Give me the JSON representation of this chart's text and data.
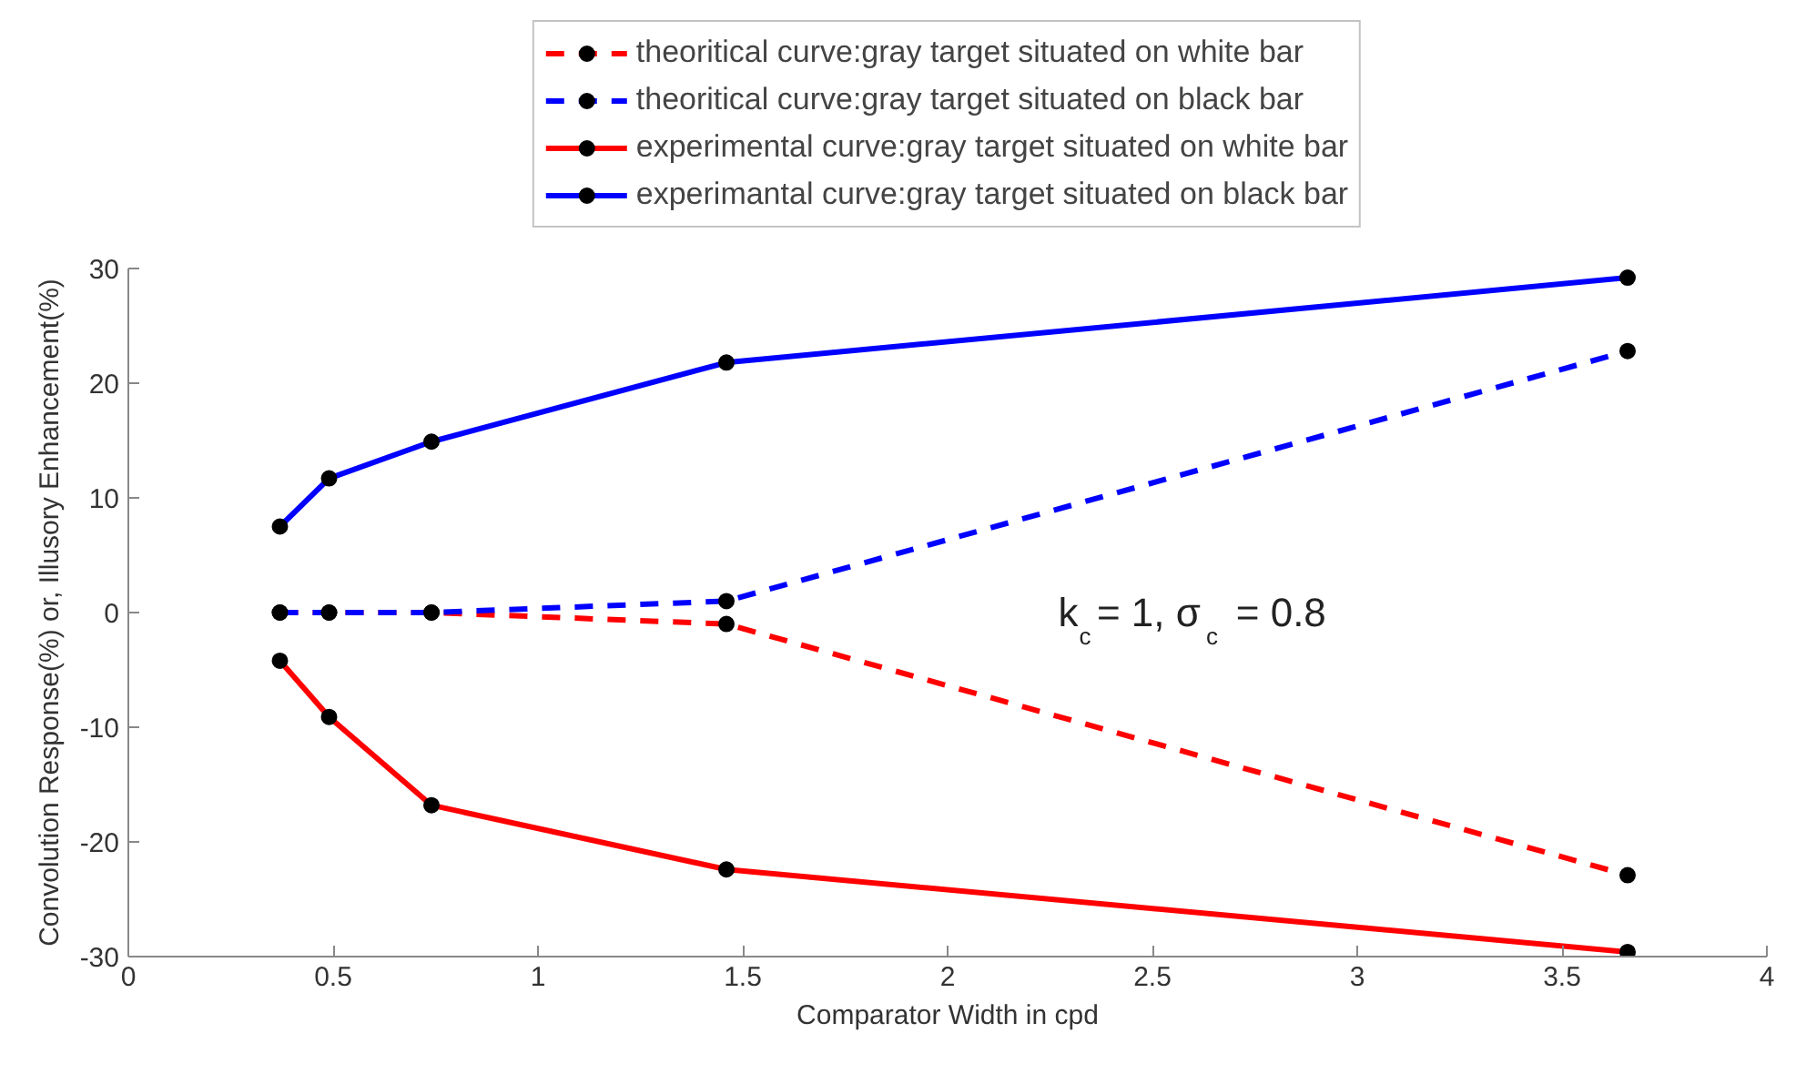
{
  "chart_data": {
    "type": "line",
    "xlabel": "Comparator Width in cpd",
    "ylabel": "Convolution Response(%) or, Illusory Enhancement(%)",
    "x": [
      0.37,
      0.49,
      0.74,
      1.46,
      3.66
    ],
    "series": [
      {
        "name": "theoritical curve:gray target situated on white bar",
        "color": "#ff0000",
        "line_style": "dashed",
        "values": [
          0,
          0,
          0,
          -1,
          -22.9
        ]
      },
      {
        "name": "theoritical curve:gray target situated on black bar",
        "color": "#0000ff",
        "line_style": "dashed",
        "values": [
          0,
          0,
          0,
          1,
          22.8
        ]
      },
      {
        "name": "experimental curve:gray target situated on white bar",
        "color": "#ff0000",
        "line_style": "solid",
        "values": [
          -4.2,
          -9.1,
          -16.8,
          -22.4,
          -29.6
        ]
      },
      {
        "name": "experimantal curve:gray target situated on black bar",
        "color": "#0000ff",
        "line_style": "solid",
        "values": [
          7.5,
          11.7,
          14.9,
          21.8,
          29.2
        ]
      }
    ],
    "xlim": [
      0,
      4
    ],
    "ylim": [
      -30,
      30
    ],
    "xticks": [
      0,
      0.5,
      1,
      1.5,
      2,
      2.5,
      3,
      3.5,
      4
    ],
    "yticks": [
      -30,
      -20,
      -10,
      0,
      10,
      20,
      30
    ],
    "annotations": [
      "k$_{c}$= 1, σ$_{c}$ = 0.8"
    ],
    "marker": "circle",
    "legend": "top",
    "grid": false
  }
}
